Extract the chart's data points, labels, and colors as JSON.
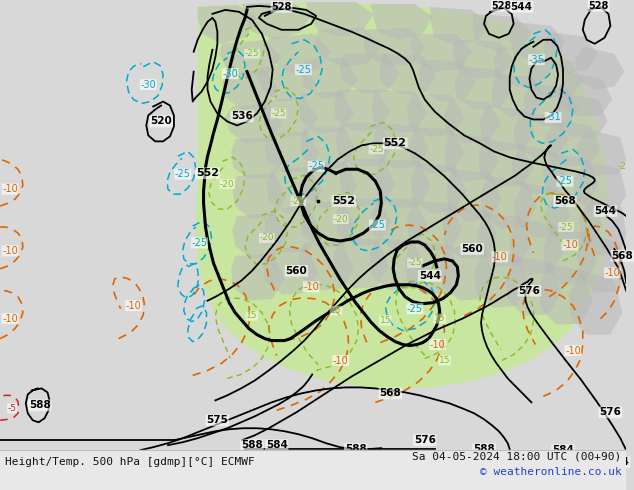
{
  "title_left": "Height/Temp. 500 hPa [gdmp][°C] ECMWF",
  "title_right": "Sa 04-05-2024 18:00 UTC (00+90)",
  "copyright": "© weatheronline.co.uk",
  "bg_color": "#d8d8d8",
  "ocean_color": "#d8d8d8",
  "land_gray": "#b8b8b8",
  "green_color": "#c8e89a",
  "fig_width": 6.34,
  "fig_height": 4.9,
  "bottom_strip_color": "#e8e8e8",
  "label_color_left": "#111111",
  "label_color_right": "#111111",
  "copyright_color": "#2244cc"
}
